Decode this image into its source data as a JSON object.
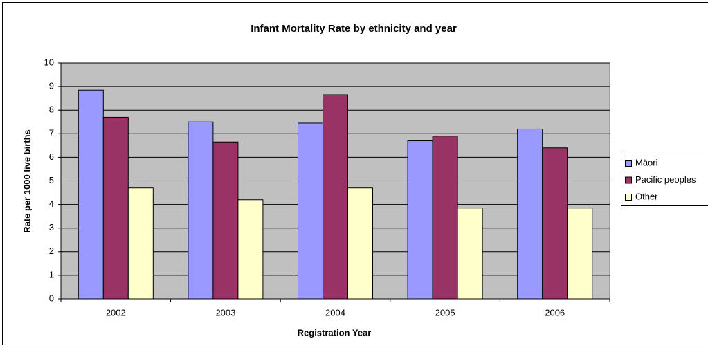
{
  "chart_data": {
    "type": "bar",
    "title": "Infant Mortality Rate by ethnicity and year",
    "x_label": "Registration Year",
    "y_label": "Rate per 1000 live births",
    "categories": [
      "2002",
      "2003",
      "2004",
      "2005",
      "2006"
    ],
    "series": [
      {
        "name": "Māori",
        "color": "#9999ff",
        "values": [
          8.85,
          7.5,
          7.45,
          6.7,
          7.2
        ]
      },
      {
        "name": "Pacific peoples",
        "color": "#993366",
        "values": [
          7.7,
          6.65,
          8.65,
          6.9,
          6.4
        ]
      },
      {
        "name": "Other",
        "color": "#ffffcc",
        "values": [
          4.7,
          4.2,
          4.7,
          3.85,
          3.85
        ]
      }
    ],
    "ylim": [
      0,
      10
    ],
    "yticks": [
      0,
      1,
      2,
      3,
      4,
      5,
      6,
      7,
      8,
      9,
      10
    ],
    "grid": true,
    "legend": "right"
  }
}
